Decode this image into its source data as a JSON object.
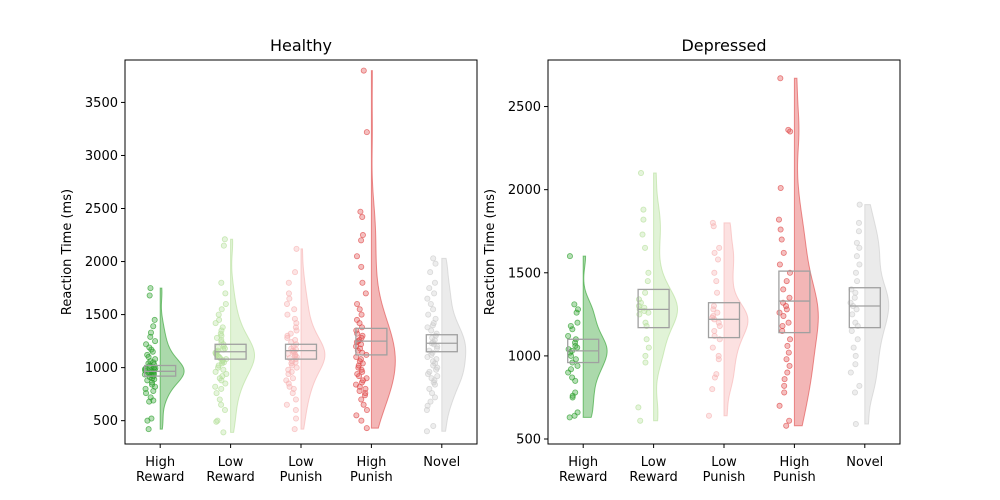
{
  "chart_data": [
    {
      "type": "raincloud",
      "title": "Healthy",
      "ylabel": "Reaction Time (ms)",
      "xlabel": "",
      "ylim": [
        280,
        3900
      ],
      "yticks": [
        500,
        1000,
        1500,
        2000,
        2500,
        3000,
        3500
      ],
      "categories": [
        "High\nReward",
        "Low\nReward",
        "Low\nPunish",
        "High\nPunish",
        "Novel"
      ],
      "series": [
        {
          "category": "High\nReward",
          "color": "#2ca02c",
          "box": {
            "q1": 920,
            "median": 965,
            "q3": 1020
          },
          "min": 420,
          "max": 1750,
          "points": [
            1750,
            1680,
            1450,
            1390,
            1330,
            1290,
            1250,
            1220,
            1190,
            1170,
            1150,
            1120,
            1100,
            1080,
            1060,
            1050,
            1040,
            1030,
            1020,
            1010,
            1000,
            995,
            990,
            985,
            980,
            975,
            970,
            965,
            960,
            955,
            950,
            945,
            940,
            935,
            930,
            920,
            910,
            900,
            890,
            880,
            860,
            840,
            820,
            800,
            780,
            760,
            720,
            690,
            680,
            520,
            500,
            420
          ]
        },
        {
          "category": "Low\nReward",
          "color": "#b5e09a",
          "box": {
            "q1": 1080,
            "median": 1150,
            "q3": 1220
          },
          "min": 390,
          "max": 2210,
          "points": [
            2210,
            2150,
            1800,
            1700,
            1600,
            1550,
            1500,
            1450,
            1420,
            1380,
            1350,
            1320,
            1300,
            1280,
            1260,
            1240,
            1220,
            1200,
            1190,
            1180,
            1170,
            1160,
            1150,
            1140,
            1130,
            1120,
            1110,
            1100,
            1090,
            1080,
            1070,
            1060,
            1050,
            1040,
            1020,
            1000,
            980,
            960,
            940,
            920,
            900,
            880,
            850,
            820,
            800,
            760,
            700,
            650,
            600,
            500,
            490,
            390
          ]
        },
        {
          "category": "Low\nPunish",
          "color": "#f7b3b3",
          "box": {
            "q1": 1080,
            "median": 1160,
            "q3": 1220
          },
          "min": 420,
          "max": 2120,
          "points": [
            2120,
            1900,
            1800,
            1700,
            1650,
            1600,
            1550,
            1500,
            1460,
            1420,
            1380,
            1350,
            1320,
            1300,
            1280,
            1260,
            1240,
            1220,
            1200,
            1180,
            1170,
            1160,
            1150,
            1140,
            1130,
            1120,
            1110,
            1100,
            1090,
            1080,
            1060,
            1050,
            1040,
            1020,
            1000,
            980,
            960,
            940,
            900,
            880,
            850,
            820,
            800,
            760,
            700,
            650,
            600,
            520,
            420
          ]
        },
        {
          "category": "High\nPunish",
          "color": "#e04848",
          "box": {
            "q1": 1120,
            "median": 1250,
            "q3": 1370
          },
          "min": 430,
          "max": 3800,
          "points": [
            3800,
            3220,
            2470,
            2420,
            2250,
            2200,
            2050,
            1950,
            1800,
            1700,
            1600,
            1550,
            1500,
            1450,
            1420,
            1380,
            1350,
            1320,
            1300,
            1280,
            1260,
            1250,
            1240,
            1220,
            1200,
            1180,
            1160,
            1140,
            1120,
            1100,
            1080,
            1060,
            1040,
            1020,
            1000,
            980,
            960,
            940,
            920,
            900,
            880,
            860,
            840,
            820,
            800,
            780,
            760,
            740,
            700,
            650,
            600,
            550,
            500,
            430
          ]
        },
        {
          "category": "Novel",
          "color": "#cccccc",
          "box": {
            "q1": 1150,
            "median": 1230,
            "q3": 1310
          },
          "min": 400,
          "max": 2030,
          "points": [
            2030,
            1980,
            1900,
            1800,
            1750,
            1700,
            1650,
            1600,
            1550,
            1500,
            1460,
            1420,
            1400,
            1380,
            1350,
            1320,
            1300,
            1280,
            1260,
            1240,
            1230,
            1220,
            1200,
            1180,
            1160,
            1140,
            1120,
            1100,
            1080,
            1060,
            1040,
            1020,
            1000,
            980,
            960,
            940,
            920,
            900,
            880,
            860,
            840,
            800,
            760,
            720,
            680,
            640,
            600,
            450,
            400
          ]
        }
      ]
    },
    {
      "type": "raincloud",
      "title": "Depressed",
      "ylabel": "Reaction Time (ms)",
      "xlabel": "",
      "ylim": [
        470,
        2780
      ],
      "yticks": [
        500,
        1000,
        1500,
        2000,
        2500
      ],
      "categories": [
        "High\nReward",
        "Low\nReward",
        "Low\nPunish",
        "High\nPunish",
        "Novel"
      ],
      "series": [
        {
          "category": "High\nReward",
          "color": "#2ca02c",
          "box": {
            "q1": 960,
            "median": 1030,
            "q3": 1100
          },
          "min": 630,
          "max": 1600,
          "points": [
            1600,
            1310,
            1280,
            1260,
            1200,
            1180,
            1160,
            1120,
            1100,
            1080,
            1060,
            1050,
            1040,
            1030,
            1020,
            1000,
            980,
            960,
            940,
            920,
            900,
            870,
            850,
            780,
            760,
            750,
            660,
            640,
            630
          ]
        },
        {
          "category": "Low\nReward",
          "color": "#b5e09a",
          "box": {
            "q1": 1170,
            "median": 1280,
            "q3": 1400
          },
          "min": 610,
          "max": 2100,
          "points": [
            2100,
            1880,
            1820,
            1730,
            1650,
            1500,
            1450,
            1380,
            1340,
            1320,
            1300,
            1290,
            1280,
            1270,
            1260,
            1250,
            1200,
            1180,
            1100,
            1050,
            1000,
            960,
            690,
            610
          ]
        },
        {
          "category": "Low\nPunish",
          "color": "#f7b3b3",
          "box": {
            "q1": 1110,
            "median": 1220,
            "q3": 1320
          },
          "min": 640,
          "max": 1800,
          "points": [
            1800,
            1780,
            1650,
            1620,
            1580,
            1500,
            1450,
            1380,
            1300,
            1280,
            1260,
            1240,
            1230,
            1220,
            1200,
            1180,
            1150,
            1120,
            1100,
            1050,
            1000,
            980,
            890,
            870,
            800,
            640
          ]
        },
        {
          "category": "High\nPunish",
          "color": "#e04848",
          "box": {
            "q1": 1140,
            "median": 1330,
            "q3": 1510
          },
          "min": 580,
          "max": 2670,
          "points": [
            2670,
            2360,
            2350,
            2010,
            1820,
            1760,
            1700,
            1620,
            1550,
            1500,
            1450,
            1400,
            1350,
            1320,
            1300,
            1280,
            1260,
            1240,
            1200,
            1180,
            1150,
            1100,
            1060,
            1020,
            980,
            940,
            900,
            860,
            820,
            780,
            700,
            610,
            580
          ]
        },
        {
          "category": "Novel",
          "color": "#cccccc",
          "box": {
            "q1": 1170,
            "median": 1300,
            "q3": 1410
          },
          "min": 590,
          "max": 1910,
          "points": [
            1910,
            1800,
            1750,
            1680,
            1650,
            1600,
            1550,
            1500,
            1450,
            1400,
            1380,
            1350,
            1320,
            1300,
            1280,
            1250,
            1200,
            1180,
            1150,
            1100,
            1050,
            1000,
            950,
            900,
            820,
            780,
            590
          ]
        }
      ]
    }
  ]
}
